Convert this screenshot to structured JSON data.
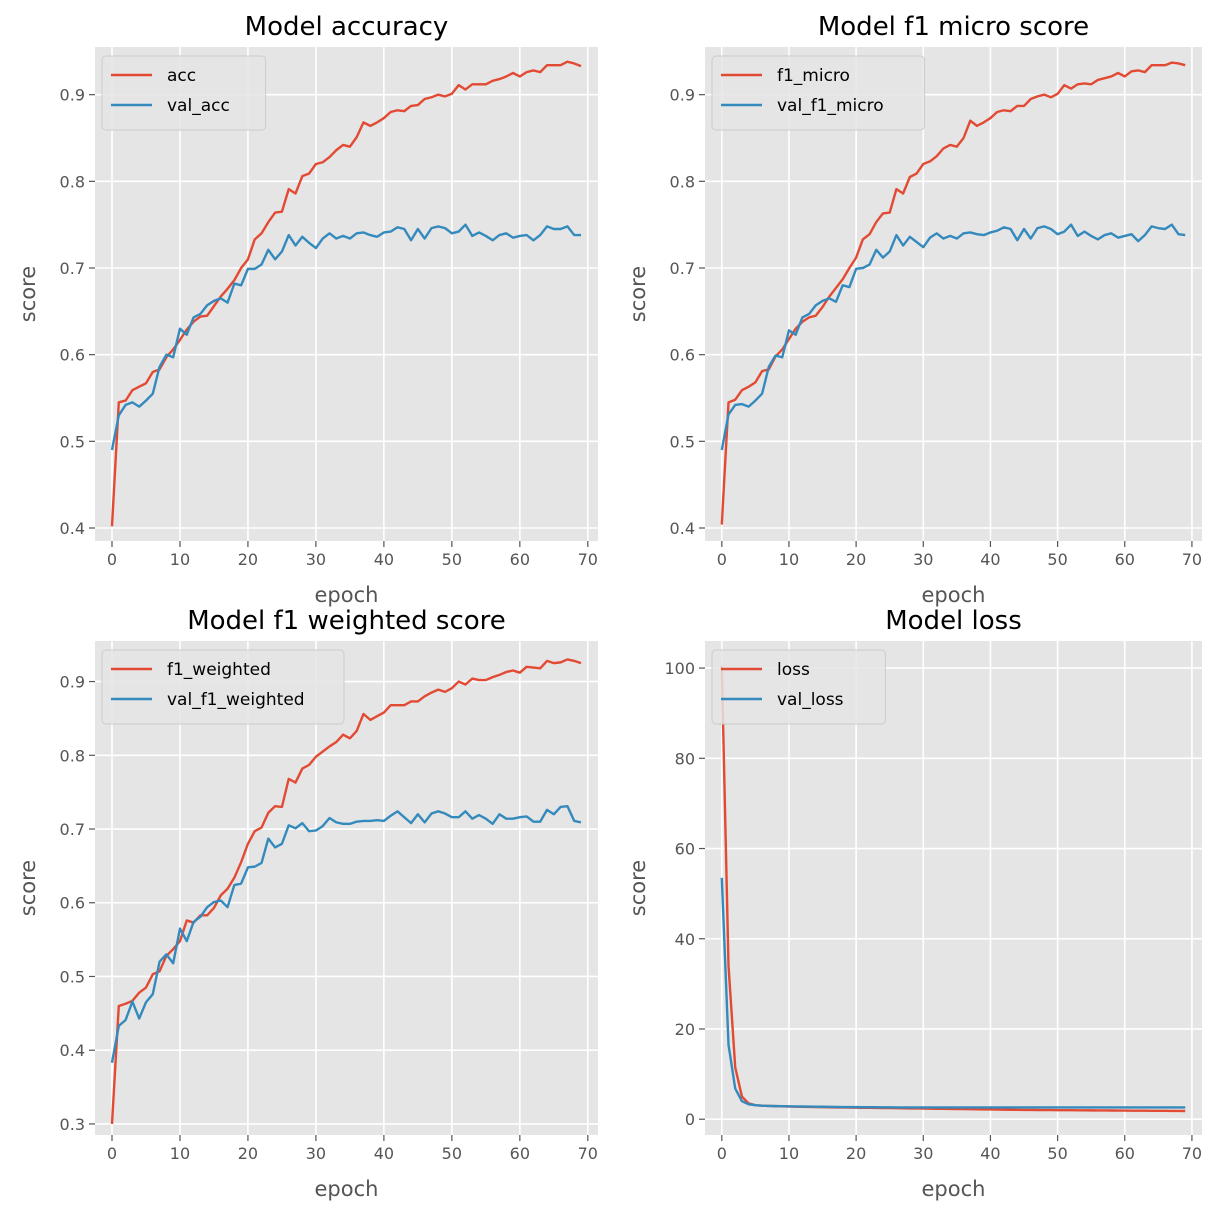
{
  "chart_data": [
    {
      "type": "line",
      "title": "Model accuracy",
      "xlabel": "epoch",
      "ylabel": "score",
      "xlim": [
        -2.5,
        71.5
      ],
      "ylim": [
        0.385,
        0.955
      ],
      "xticks": [
        0,
        10,
        20,
        30,
        40,
        50,
        60,
        70
      ],
      "yticks": [
        0.4,
        0.5,
        0.6,
        0.7,
        0.8,
        0.9
      ],
      "tick_decimals": 1,
      "grid": true,
      "legend_position": "upper-left",
      "x": [
        0,
        1,
        2,
        3,
        4,
        5,
        6,
        7,
        8,
        9,
        10,
        11,
        12,
        13,
        14,
        15,
        16,
        17,
        18,
        19,
        20,
        21,
        22,
        23,
        24,
        25,
        26,
        27,
        28,
        29,
        30,
        31,
        32,
        33,
        34,
        35,
        36,
        37,
        38,
        39,
        40,
        41,
        42,
        43,
        44,
        45,
        46,
        47,
        48,
        49,
        50,
        51,
        52,
        53,
        54,
        55,
        56,
        57,
        58,
        59,
        60,
        61,
        62,
        63,
        64,
        65,
        66,
        67,
        68,
        69
      ],
      "series": [
        {
          "name": "acc",
          "color": "#E24A33",
          "values": [
            0.402,
            0.545,
            0.547,
            0.559,
            0.563,
            0.567,
            0.58,
            0.583,
            0.597,
            0.606,
            0.617,
            0.629,
            0.638,
            0.644,
            0.645,
            0.656,
            0.667,
            0.676,
            0.686,
            0.7,
            0.71,
            0.733,
            0.74,
            0.753,
            0.764,
            0.765,
            0.791,
            0.786,
            0.806,
            0.809,
            0.82,
            0.822,
            0.828,
            0.836,
            0.842,
            0.84,
            0.851,
            0.868,
            0.864,
            0.868,
            0.873,
            0.88,
            0.882,
            0.881,
            0.887,
            0.888,
            0.895,
            0.897,
            0.9,
            0.898,
            0.901,
            0.911,
            0.906,
            0.912,
            0.912,
            0.912,
            0.916,
            0.918,
            0.921,
            0.925,
            0.921,
            0.926,
            0.928,
            0.926,
            0.934,
            0.934,
            0.934,
            0.938,
            0.936,
            0.933
          ]
        },
        {
          "name": "val_acc",
          "color": "#348ABD",
          "values": [
            0.49,
            0.53,
            0.542,
            0.545,
            0.54,
            0.547,
            0.555,
            0.586,
            0.6,
            0.597,
            0.63,
            0.623,
            0.643,
            0.647,
            0.657,
            0.662,
            0.665,
            0.66,
            0.682,
            0.68,
            0.699,
            0.699,
            0.704,
            0.721,
            0.71,
            0.719,
            0.738,
            0.726,
            0.736,
            0.729,
            0.723,
            0.734,
            0.74,
            0.734,
            0.737,
            0.734,
            0.74,
            0.741,
            0.738,
            0.736,
            0.741,
            0.742,
            0.747,
            0.745,
            0.732,
            0.745,
            0.734,
            0.746,
            0.748,
            0.746,
            0.74,
            0.742,
            0.75,
            0.737,
            0.741,
            0.737,
            0.732,
            0.738,
            0.74,
            0.735,
            0.737,
            0.738,
            0.732,
            0.738,
            0.748,
            0.745,
            0.745,
            0.748,
            0.738,
            0.738
          ]
        }
      ]
    },
    {
      "type": "line",
      "title": "Model f1 micro score",
      "xlabel": "epoch",
      "ylabel": "score",
      "xlim": [
        -2.5,
        71.5
      ],
      "ylim": [
        0.385,
        0.955
      ],
      "xticks": [
        0,
        10,
        20,
        30,
        40,
        50,
        60,
        70
      ],
      "yticks": [
        0.4,
        0.5,
        0.6,
        0.7,
        0.8,
        0.9
      ],
      "tick_decimals": 1,
      "grid": true,
      "legend_position": "upper-left",
      "x": [
        0,
        1,
        2,
        3,
        4,
        5,
        6,
        7,
        8,
        9,
        10,
        11,
        12,
        13,
        14,
        15,
        16,
        17,
        18,
        19,
        20,
        21,
        22,
        23,
        24,
        25,
        26,
        27,
        28,
        29,
        30,
        31,
        32,
        33,
        34,
        35,
        36,
        37,
        38,
        39,
        40,
        41,
        42,
        43,
        44,
        45,
        46,
        47,
        48,
        49,
        50,
        51,
        52,
        53,
        54,
        55,
        56,
        57,
        58,
        59,
        60,
        61,
        62,
        63,
        64,
        65,
        66,
        67,
        68,
        69
      ],
      "series": [
        {
          "name": "f1_micro",
          "color": "#E24A33",
          "values": [
            0.404,
            0.545,
            0.548,
            0.559,
            0.563,
            0.568,
            0.581,
            0.583,
            0.598,
            0.606,
            0.618,
            0.63,
            0.638,
            0.643,
            0.645,
            0.655,
            0.667,
            0.677,
            0.687,
            0.7,
            0.712,
            0.733,
            0.739,
            0.753,
            0.763,
            0.764,
            0.791,
            0.786,
            0.805,
            0.809,
            0.82,
            0.823,
            0.829,
            0.838,
            0.842,
            0.84,
            0.85,
            0.87,
            0.864,
            0.868,
            0.873,
            0.88,
            0.882,
            0.881,
            0.887,
            0.887,
            0.895,
            0.898,
            0.9,
            0.897,
            0.901,
            0.911,
            0.907,
            0.912,
            0.913,
            0.912,
            0.917,
            0.919,
            0.921,
            0.925,
            0.921,
            0.927,
            0.928,
            0.926,
            0.934,
            0.934,
            0.934,
            0.937,
            0.936,
            0.934
          ]
        },
        {
          "name": "val_f1_micro",
          "color": "#348ABD",
          "values": [
            0.49,
            0.531,
            0.542,
            0.543,
            0.54,
            0.547,
            0.555,
            0.586,
            0.599,
            0.597,
            0.628,
            0.623,
            0.643,
            0.647,
            0.657,
            0.662,
            0.665,
            0.661,
            0.68,
            0.678,
            0.699,
            0.7,
            0.704,
            0.721,
            0.712,
            0.719,
            0.738,
            0.726,
            0.736,
            0.73,
            0.724,
            0.735,
            0.74,
            0.734,
            0.737,
            0.734,
            0.74,
            0.741,
            0.739,
            0.738,
            0.741,
            0.743,
            0.747,
            0.745,
            0.732,
            0.745,
            0.734,
            0.746,
            0.748,
            0.745,
            0.739,
            0.742,
            0.75,
            0.737,
            0.742,
            0.737,
            0.733,
            0.738,
            0.74,
            0.735,
            0.737,
            0.739,
            0.731,
            0.738,
            0.748,
            0.746,
            0.745,
            0.75,
            0.739,
            0.738
          ]
        }
      ]
    },
    {
      "type": "line",
      "title": "Model f1 weighted score",
      "xlabel": "epoch",
      "ylabel": "score",
      "xlim": [
        -2.5,
        71.5
      ],
      "ylim": [
        0.285,
        0.955
      ],
      "xticks": [
        0,
        10,
        20,
        30,
        40,
        50,
        60,
        70
      ],
      "yticks": [
        0.3,
        0.4,
        0.5,
        0.6,
        0.7,
        0.8,
        0.9
      ],
      "tick_decimals": 1,
      "grid": true,
      "legend_position": "upper-left",
      "x": [
        0,
        1,
        2,
        3,
        4,
        5,
        6,
        7,
        8,
        9,
        10,
        11,
        12,
        13,
        14,
        15,
        16,
        17,
        18,
        19,
        20,
        21,
        22,
        23,
        24,
        25,
        26,
        27,
        28,
        29,
        30,
        31,
        32,
        33,
        34,
        35,
        36,
        37,
        38,
        39,
        40,
        41,
        42,
        43,
        44,
        45,
        46,
        47,
        48,
        49,
        50,
        51,
        52,
        53,
        54,
        55,
        56,
        57,
        58,
        59,
        60,
        61,
        62,
        63,
        64,
        65,
        66,
        67,
        68,
        69
      ],
      "series": [
        {
          "name": "f1_weighted",
          "color": "#E24A33",
          "values": [
            0.3,
            0.46,
            0.463,
            0.467,
            0.478,
            0.485,
            0.503,
            0.507,
            0.528,
            0.537,
            0.548,
            0.576,
            0.573,
            0.583,
            0.583,
            0.593,
            0.61,
            0.619,
            0.634,
            0.655,
            0.68,
            0.697,
            0.702,
            0.722,
            0.731,
            0.73,
            0.768,
            0.763,
            0.782,
            0.787,
            0.798,
            0.805,
            0.812,
            0.818,
            0.828,
            0.823,
            0.833,
            0.856,
            0.848,
            0.853,
            0.858,
            0.868,
            0.868,
            0.868,
            0.873,
            0.873,
            0.88,
            0.885,
            0.889,
            0.886,
            0.891,
            0.9,
            0.896,
            0.904,
            0.902,
            0.902,
            0.906,
            0.909,
            0.913,
            0.915,
            0.912,
            0.92,
            0.919,
            0.918,
            0.928,
            0.925,
            0.926,
            0.93,
            0.928,
            0.925
          ]
        },
        {
          "name": "val_f1_weighted",
          "color": "#348ABD",
          "values": [
            0.383,
            0.433,
            0.441,
            0.466,
            0.443,
            0.465,
            0.476,
            0.52,
            0.53,
            0.518,
            0.565,
            0.548,
            0.574,
            0.581,
            0.594,
            0.601,
            0.603,
            0.594,
            0.624,
            0.626,
            0.648,
            0.649,
            0.654,
            0.687,
            0.675,
            0.68,
            0.705,
            0.701,
            0.708,
            0.697,
            0.698,
            0.704,
            0.715,
            0.709,
            0.707,
            0.707,
            0.71,
            0.711,
            0.711,
            0.712,
            0.711,
            0.718,
            0.724,
            0.716,
            0.708,
            0.72,
            0.709,
            0.721,
            0.724,
            0.721,
            0.716,
            0.716,
            0.724,
            0.714,
            0.719,
            0.714,
            0.707,
            0.72,
            0.714,
            0.714,
            0.716,
            0.717,
            0.71,
            0.71,
            0.726,
            0.72,
            0.73,
            0.731,
            0.711,
            0.709
          ]
        }
      ]
    },
    {
      "type": "line",
      "title": "Model loss",
      "xlabel": "epoch",
      "ylabel": "score",
      "xlim": [
        -2.5,
        71.5
      ],
      "ylim": [
        -3.5,
        106
      ],
      "xticks": [
        0,
        10,
        20,
        30,
        40,
        50,
        60,
        70
      ],
      "yticks": [
        0,
        20,
        40,
        60,
        80,
        100
      ],
      "tick_decimals": 0,
      "grid": true,
      "legend_position": "upper-left",
      "x": [
        0,
        1,
        2,
        3,
        4,
        5,
        6,
        7,
        8,
        9,
        10,
        11,
        12,
        13,
        14,
        15,
        16,
        17,
        18,
        19,
        20,
        21,
        22,
        23,
        24,
        25,
        26,
        27,
        28,
        29,
        30,
        31,
        32,
        33,
        34,
        35,
        36,
        37,
        38,
        39,
        40,
        41,
        42,
        43,
        44,
        45,
        46,
        47,
        48,
        49,
        50,
        51,
        52,
        53,
        54,
        55,
        56,
        57,
        58,
        59,
        60,
        61,
        62,
        63,
        64,
        65,
        66,
        67,
        68,
        69
      ],
      "series": [
        {
          "name": "loss",
          "color": "#E24A33",
          "values": [
            100.5,
            34.0,
            11.5,
            5.0,
            3.5,
            3.1,
            3.0,
            2.95,
            2.9,
            2.85,
            2.8,
            2.78,
            2.75,
            2.72,
            2.7,
            2.68,
            2.65,
            2.62,
            2.6,
            2.58,
            2.56,
            2.54,
            2.52,
            2.5,
            2.48,
            2.46,
            2.44,
            2.42,
            2.4,
            2.38,
            2.36,
            2.34,
            2.32,
            2.3,
            2.28,
            2.26,
            2.24,
            2.22,
            2.2,
            2.18,
            2.16,
            2.14,
            2.12,
            2.1,
            2.08,
            2.06,
            2.05,
            2.04,
            2.03,
            2.02,
            2.01,
            2.0,
            1.99,
            1.98,
            1.97,
            1.96,
            1.95,
            1.94,
            1.93,
            1.92,
            1.91,
            1.9,
            1.89,
            1.88,
            1.87,
            1.86,
            1.85,
            1.84,
            1.83,
            1.82
          ]
        },
        {
          "name": "val_loss",
          "color": "#348ABD",
          "values": [
            53.5,
            16.5,
            6.8,
            4.0,
            3.3,
            3.1,
            3.0,
            2.95,
            2.9,
            2.88,
            2.86,
            2.84,
            2.82,
            2.8,
            2.78,
            2.76,
            2.74,
            2.72,
            2.7,
            2.69,
            2.68,
            2.67,
            2.66,
            2.65,
            2.64,
            2.63,
            2.62,
            2.61,
            2.6,
            2.6,
            2.6,
            2.6,
            2.6,
            2.6,
            2.6,
            2.6,
            2.6,
            2.6,
            2.6,
            2.6,
            2.6,
            2.6,
            2.6,
            2.6,
            2.6,
            2.6,
            2.6,
            2.6,
            2.6,
            2.6,
            2.6,
            2.6,
            2.6,
            2.6,
            2.6,
            2.6,
            2.6,
            2.6,
            2.6,
            2.6,
            2.6,
            2.6,
            2.6,
            2.6,
            2.6,
            2.6,
            2.6,
            2.6,
            2.6,
            2.6
          ]
        }
      ]
    }
  ]
}
